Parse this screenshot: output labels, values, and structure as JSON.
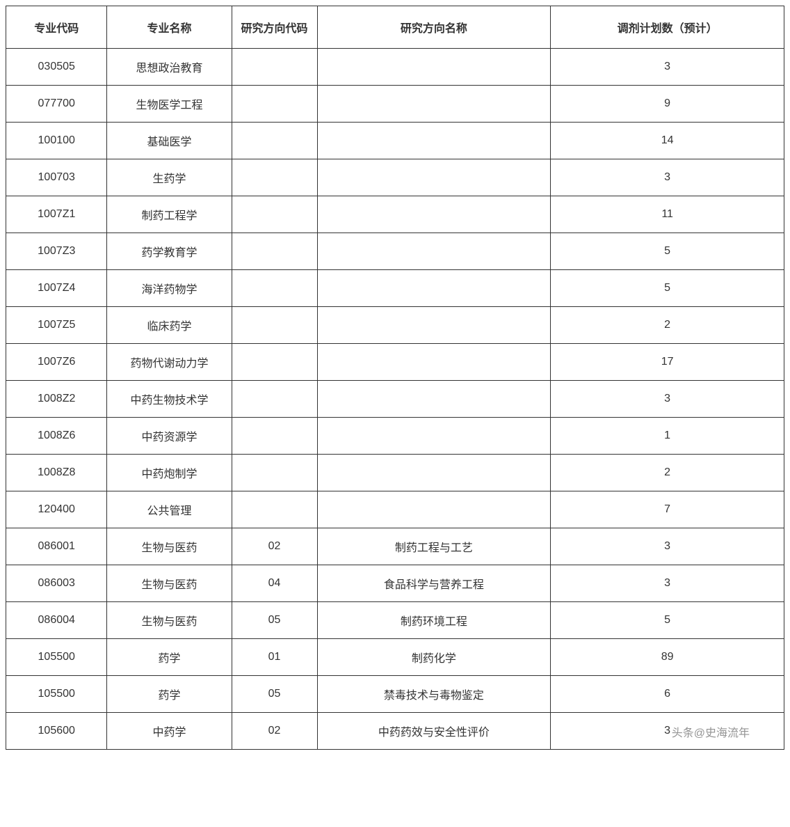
{
  "table": {
    "columns": [
      "专业代码",
      "专业名称",
      "研究方向代码",
      "研究方向名称",
      "调剂计划数（预计）"
    ],
    "rows": [
      [
        "030505",
        "思想政治教育",
        "",
        "",
        "3"
      ],
      [
        "077700",
        "生物医学工程",
        "",
        "",
        "9"
      ],
      [
        "100100",
        "基础医学",
        "",
        "",
        "14"
      ],
      [
        "100703",
        "生药学",
        "",
        "",
        "3"
      ],
      [
        "1007Z1",
        "制药工程学",
        "",
        "",
        "11"
      ],
      [
        "1007Z3",
        "药学教育学",
        "",
        "",
        "5"
      ],
      [
        "1007Z4",
        "海洋药物学",
        "",
        "",
        "5"
      ],
      [
        "1007Z5",
        "临床药学",
        "",
        "",
        "2"
      ],
      [
        "1007Z6",
        "药物代谢动力学",
        "",
        "",
        "17"
      ],
      [
        "1008Z2",
        "中药生物技术学",
        "",
        "",
        "3"
      ],
      [
        "1008Z6",
        "中药资源学",
        "",
        "",
        "1"
      ],
      [
        "1008Z8",
        "中药炮制学",
        "",
        "",
        "2"
      ],
      [
        "120400",
        "公共管理",
        "",
        "",
        "7"
      ],
      [
        "086001",
        "生物与医药",
        "02",
        "制药工程与工艺",
        "3"
      ],
      [
        "086003",
        "生物与医药",
        "04",
        "食品科学与营养工程",
        "3"
      ],
      [
        "086004",
        "生物与医药",
        "05",
        "制药环境工程",
        "5"
      ],
      [
        "105500",
        "药学",
        "01",
        "制药化学",
        "89"
      ],
      [
        "105500",
        "药学",
        "05",
        "禁毒技术与毒物鉴定",
        "6"
      ],
      [
        "105600",
        "中药学",
        "02",
        "中药药效与安全性评价",
        "3"
      ]
    ],
    "column_widths": [
      "13%",
      "16%",
      "11%",
      "30%",
      "30%"
    ],
    "border_color": "#333333",
    "text_color": "#333333",
    "background_color": "#ffffff",
    "header_fontsize": 16,
    "cell_fontsize": 16
  },
  "watermark": {
    "text": "头条@史海流年",
    "color": "#666666"
  }
}
